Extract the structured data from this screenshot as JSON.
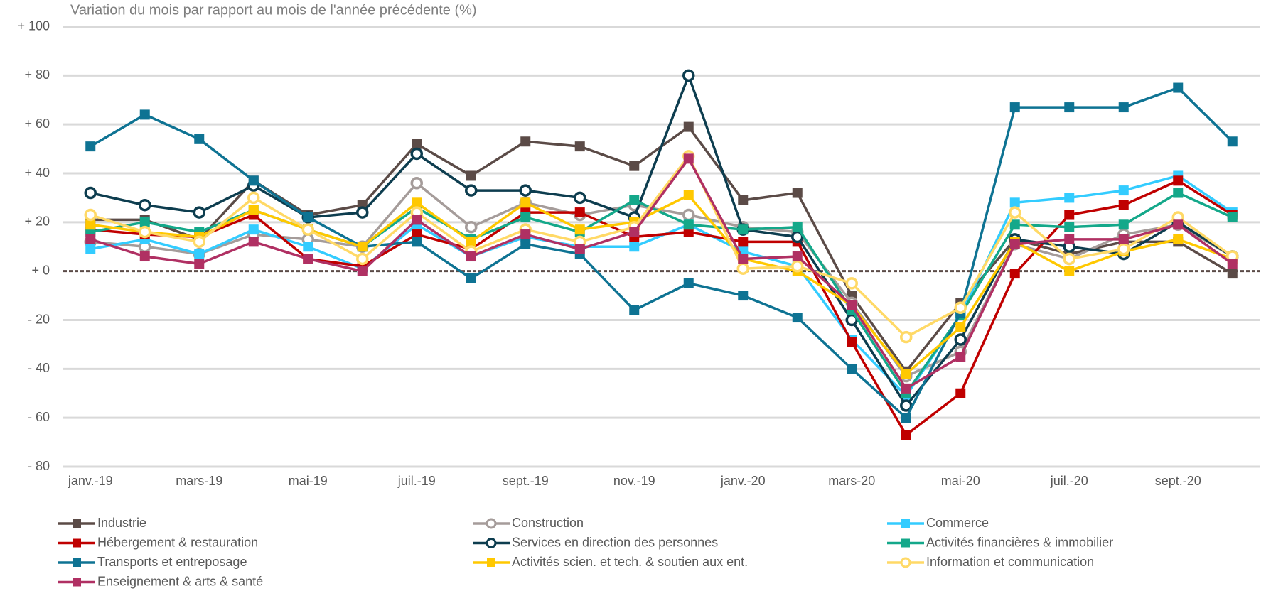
{
  "chart_data": {
    "type": "line",
    "title": "Variation du mois par rapport au mois de l'année précédente (%)",
    "categories": [
      "janv.-19",
      null,
      "mars-19",
      null,
      "mai-19",
      null,
      "juil.-19",
      null,
      "sept.-19",
      null,
      "nov.-19",
      null,
      "janv.-20",
      null,
      "mars-20",
      null,
      "mai-20",
      null,
      "juil.-20",
      null,
      "sept.-20",
      null
    ],
    "ylim": [
      -80,
      100
    ],
    "yticks": [
      {
        "value": -80,
        "label": "- 80"
      },
      {
        "value": -60,
        "label": "- 60"
      },
      {
        "value": -40,
        "label": "- 40"
      },
      {
        "value": -20,
        "label": "- 20"
      },
      {
        "value": 0,
        "label": "+ 0"
      },
      {
        "value": 20,
        "label": "+ 20"
      },
      {
        "value": 40,
        "label": "+ 40"
      },
      {
        "value": 60,
        "label": "+ 60"
      },
      {
        "value": 80,
        "label": "+ 80"
      },
      {
        "value": 100,
        "label": "+ 100"
      }
    ],
    "grid": true,
    "legend": "bottom",
    "series": [
      {
        "name": "Industrie",
        "color": "#5b4b47",
        "marker": "square",
        "values": [
          21,
          21,
          13,
          37,
          23,
          27,
          52,
          39,
          53,
          51,
          43,
          59,
          29,
          32,
          -10,
          -41,
          -13,
          13,
          7,
          12,
          12,
          -1
        ]
      },
      {
        "name": "Construction",
        "color": "#a59c9a",
        "marker": "circle",
        "values": [
          12,
          10,
          7,
          15,
          13,
          10,
          36,
          18,
          28,
          23,
          27,
          23,
          18,
          16,
          -13,
          -43,
          -33,
          11,
          5,
          15,
          19,
          6
        ]
      },
      {
        "name": "Commerce",
        "color": "#33ccff",
        "marker": "square",
        "values": [
          9,
          13,
          7,
          17,
          10,
          1,
          19,
          6,
          14,
          10,
          10,
          19,
          8,
          2,
          -28,
          -51,
          -18,
          28,
          30,
          33,
          39,
          24
        ]
      },
      {
        "name": "Hébergement & restauration",
        "color": "#c00000",
        "marker": "square",
        "values": [
          17,
          15,
          14,
          23,
          5,
          2,
          15,
          9,
          24,
          24,
          14,
          16,
          12,
          12,
          -29,
          -67,
          -50,
          -1,
          23,
          27,
          37,
          23
        ]
      },
      {
        "name": "Services en direction des personnes",
        "color": "#0d3d4f",
        "marker": "circle",
        "values": [
          32,
          27,
          24,
          35,
          22,
          24,
          48,
          33,
          33,
          30,
          22,
          80,
          17,
          14,
          -20,
          -55,
          -28,
          13,
          10,
          7,
          20,
          6
        ]
      },
      {
        "name": "Activités financières & immobilier",
        "color": "#14a88a",
        "marker": "square",
        "values": [
          16,
          20,
          16,
          25,
          17,
          10,
          26,
          13,
          22,
          16,
          29,
          19,
          17,
          18,
          -16,
          -50,
          -18,
          19,
          18,
          19,
          32,
          22
        ]
      },
      {
        "name": "Transports et entreposage",
        "color": "#0e7393",
        "marker": "square",
        "values": [
          51,
          64,
          54,
          37,
          22,
          10,
          12,
          -3,
          11,
          7,
          -16,
          -5,
          -10,
          -19,
          -40,
          -60,
          -17,
          67,
          67,
          67,
          75,
          53
        ]
      },
      {
        "name": "Activités scien. et tech. & soutien aux ent.",
        "color": "#ffc800",
        "marker": "square",
        "values": [
          19,
          16,
          14,
          25,
          17,
          10,
          28,
          12,
          28,
          17,
          20,
          31,
          5,
          0,
          -14,
          -42,
          -23,
          12,
          0,
          8,
          13,
          5
        ]
      },
      {
        "name": "Information et communication",
        "color": "#ffd966",
        "marker": "circle",
        "values": [
          23,
          16,
          12,
          30,
          17,
          5,
          24,
          8,
          17,
          12,
          18,
          47,
          1,
          2,
          -5,
          -27,
          -15,
          24,
          5,
          9,
          22,
          6
        ]
      },
      {
        "name": "Enseignement & arts & santé",
        "color": "#b03063",
        "marker": "square",
        "values": [
          13,
          6,
          3,
          12,
          5,
          0,
          21,
          6,
          15,
          9,
          16,
          46,
          5,
          6,
          -14,
          -48,
          -35,
          11,
          13,
          13,
          19,
          3
        ]
      }
    ]
  }
}
